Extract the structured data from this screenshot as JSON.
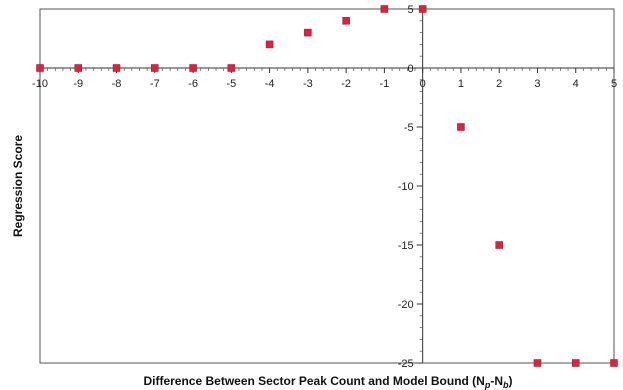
{
  "chart_data": {
    "type": "scatter",
    "title": "",
    "xlabel": "Difference Between Sector Peak Count and Model Bound (N",
    "xlabel_sub_p": "p",
    "xlabel_dash": "-N",
    "xlabel_sub_b": "b",
    "xlabel_close": ")",
    "ylabel": "Regression Score",
    "xlim": [
      -10,
      5
    ],
    "ylim": [
      -25,
      5
    ],
    "xticks": [
      -10,
      -9,
      -8,
      -7,
      -6,
      -5,
      -4,
      -3,
      -2,
      -1,
      0,
      1,
      2,
      3,
      4,
      5
    ],
    "yticks": [
      5,
      0,
      -5,
      -10,
      -15,
      -20,
      -25
    ],
    "grid": false,
    "marker_color": "#e0203c",
    "series": [
      {
        "x": [
          -10,
          -9,
          -8,
          -7,
          -6,
          -5,
          -4,
          -3,
          -2,
          -1,
          0,
          1,
          2,
          3,
          4,
          5
        ],
        "y": [
          0,
          0,
          0,
          0,
          0,
          0,
          2,
          3,
          4,
          5,
          5,
          -5,
          -15,
          -25,
          -25,
          -25
        ]
      }
    ]
  }
}
